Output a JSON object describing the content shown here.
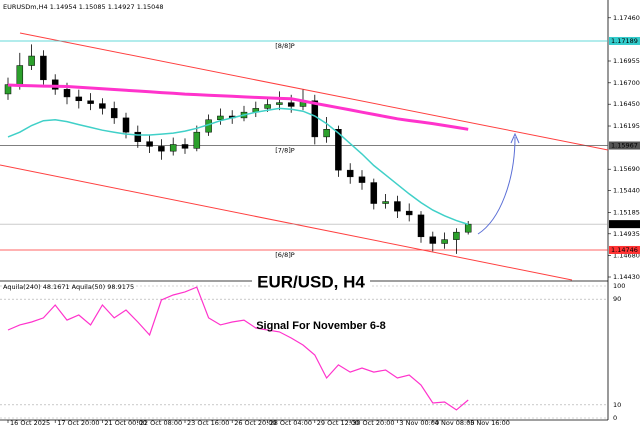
{
  "chart_data": {
    "type": "candlestick",
    "symbol": "EURUSDm,H4",
    "categories": [
      "16 Oct 2025",
      null,
      null,
      null,
      "17 Oct 20:00",
      null,
      null,
      null,
      "21 Oct 00:00",
      null,
      null,
      "22 Oct 08:00",
      null,
      null,
      null,
      "23 Oct 16:00",
      null,
      null,
      null,
      "26 Oct 20:00",
      null,
      null,
      "28 Oct 04:00",
      null,
      null,
      null,
      "29 Oct 12:00",
      null,
      null,
      "30 Oct 20:00",
      null,
      null,
      null,
      "3 Nov 00:00",
      null,
      null,
      "4 Nov 08:00",
      null,
      null,
      "5 Nov 16:00"
    ],
    "open": [
      1.1657,
      1.16679,
      1.16902,
      1.17013,
      1.16735,
      1.16624,
      1.16535,
      1.1649,
      1.16457,
      1.16401,
      1.1629,
      1.16123,
      1.16012,
      1.15957,
      1.15901,
      1.15979,
      1.15934,
      1.16123,
      1.16268,
      1.16312,
      1.1629,
      1.16357,
      1.16401,
      1.16446,
      1.16468,
      1.16424,
      1.1649,
      1.16068,
      1.16157,
      1.15679,
      1.15601,
      1.15534,
      1.15289,
      1.15312,
      1.152,
      1.15156,
      1.149,
      1.14822,
      1.14867,
      1.14954
    ],
    "high": [
      1.1676,
      1.1705,
      1.1715,
      1.1708,
      1.168,
      1.167,
      1.1662,
      1.1658,
      1.1652,
      1.1648,
      1.1635,
      1.162,
      1.1609,
      1.1604,
      1.1606,
      1.1605,
      1.162,
      1.1633,
      1.164,
      1.1638,
      1.1643,
      1.1648,
      1.1653,
      1.166,
      1.1656,
      1.1662,
      1.1656,
      1.163,
      1.162,
      1.1576,
      1.1568,
      1.1558,
      1.154,
      1.1538,
      1.1529,
      1.152,
      1.1496,
      1.1495,
      1.15,
      1.15085
    ],
    "low": [
      1.165,
      1.1662,
      1.1685,
      1.1668,
      1.1656,
      1.1645,
      1.164,
      1.1638,
      1.1633,
      1.1622,
      1.1605,
      1.1594,
      1.1588,
      1.158,
      1.1585,
      1.1587,
      1.159,
      1.1608,
      1.1621,
      1.1622,
      1.1625,
      1.163,
      1.1636,
      1.1638,
      1.1635,
      1.1638,
      1.1598,
      1.16,
      1.156,
      1.1552,
      1.1545,
      1.1522,
      1.1523,
      1.1512,
      1.1508,
      1.1483,
      1.1473,
      1.1476,
      1.147,
      1.14927
    ],
    "close": [
      1.16679,
      1.16902,
      1.17013,
      1.16735,
      1.16624,
      1.16535,
      1.1649,
      1.16457,
      1.16401,
      1.1629,
      1.16123,
      1.16012,
      1.15957,
      1.15901,
      1.15979,
      1.15934,
      1.16123,
      1.16268,
      1.16312,
      1.1629,
      1.16357,
      1.16401,
      1.16446,
      1.16468,
      1.16424,
      1.1649,
      1.16068,
      1.16157,
      1.15679,
      1.15601,
      1.15534,
      1.15289,
      1.15312,
      1.152,
      1.15156,
      1.149,
      1.14822,
      1.14867,
      1.14954,
      1.15048
    ],
    "up_color": "#2ca02c",
    "down_color": "#000000",
    "lines": [
      {
        "color": "#ff33cc",
        "width": 3,
        "values": [
          1.16674,
          1.16668,
          1.16665,
          1.16662,
          1.16659,
          1.16657,
          1.16648,
          1.16639,
          1.1663,
          1.16622,
          1.16613,
          1.16604,
          1.16595,
          1.16586,
          1.16577,
          1.16568,
          1.16562,
          1.16555,
          1.16548,
          1.16542,
          1.16535,
          1.16529,
          1.16524,
          1.16518,
          1.16513,
          1.16487,
          1.1646,
          1.16435,
          1.16409,
          1.16383,
          1.16357,
          1.16331,
          1.16305,
          1.16279,
          1.1626,
          1.16242,
          1.16223,
          1.16201,
          1.16179,
          1.16157
        ]
      },
      {
        "color": "#40d0c8",
        "width": 1.5,
        "values": [
          1.16068,
          1.16123,
          1.16201,
          1.16257,
          1.16268,
          1.16246,
          1.16212,
          1.16179,
          1.16146,
          1.16123,
          1.16101,
          1.1609,
          1.1609,
          1.16101,
          1.16112,
          1.16135,
          1.16168,
          1.16212,
          1.16257,
          1.1629,
          1.16324,
          1.16357,
          1.16379,
          1.16401,
          1.1639,
          1.16368,
          1.16312,
          1.16223,
          1.16112,
          1.1599,
          1.15868,
          1.15734,
          1.15623,
          1.15512,
          1.15401,
          1.153,
          1.15212,
          1.15145,
          1.15089,
          1.15045
        ]
      }
    ],
    "levels": [
      {
        "value": 1.17189,
        "label": "[8/8]P",
        "color": "#33cccc"
      },
      {
        "value": 1.15967,
        "label": "[7/8]P",
        "color": "#555555"
      },
      {
        "value": 1.14746,
        "label": "[6/8]P",
        "color": "#ff3333"
      }
    ],
    "ylim": [
      1.14395,
      1.17668
    ],
    "yticks": [
      {
        "value": 1.1746,
        "label": "1.17460"
      },
      1.16955,
      {
        "value": 1.167,
        "label": "1.16700"
      },
      {
        "value": 1.1645,
        "label": "1.16450"
      },
      1.16195,
      {
        "value": 1.1569,
        "label": "1.15690"
      },
      {
        "value": 1.1544,
        "label": "1.15440"
      },
      1.15185,
      1.14935,
      {
        "value": 1.1468,
        "label": "1.14680"
      },
      {
        "value": 1.1443,
        "label": "1.14430"
      }
    ],
    "annotations": [
      "EUR/USD, H4",
      "Signal For November 6-8"
    ],
    "indicator": {
      "header": "Aquila(240) 48.1671  Aquila(50) 98.9175",
      "color": "#ff33cc",
      "values": [
        66.7,
        70.5,
        72.7,
        75.8,
        85.6,
        74.2,
        78.0,
        70.5,
        85.6,
        75.8,
        81.8,
        72.7,
        62.9,
        89.4,
        93.2,
        95.5,
        99.2,
        75.8,
        70.5,
        72.7,
        74.2,
        68.2,
        66.7,
        65.2,
        60.6,
        55.3,
        47.7,
        30.3,
        40.2,
        34.8,
        37.9,
        34.8,
        36.4,
        30.3,
        32.6,
        25.0,
        11.4,
        12.1,
        6.1,
        13.6
      ],
      "ylim": [
        0,
        100
      ],
      "yticks": [
        100,
        90,
        10,
        0
      ]
    }
  }
}
